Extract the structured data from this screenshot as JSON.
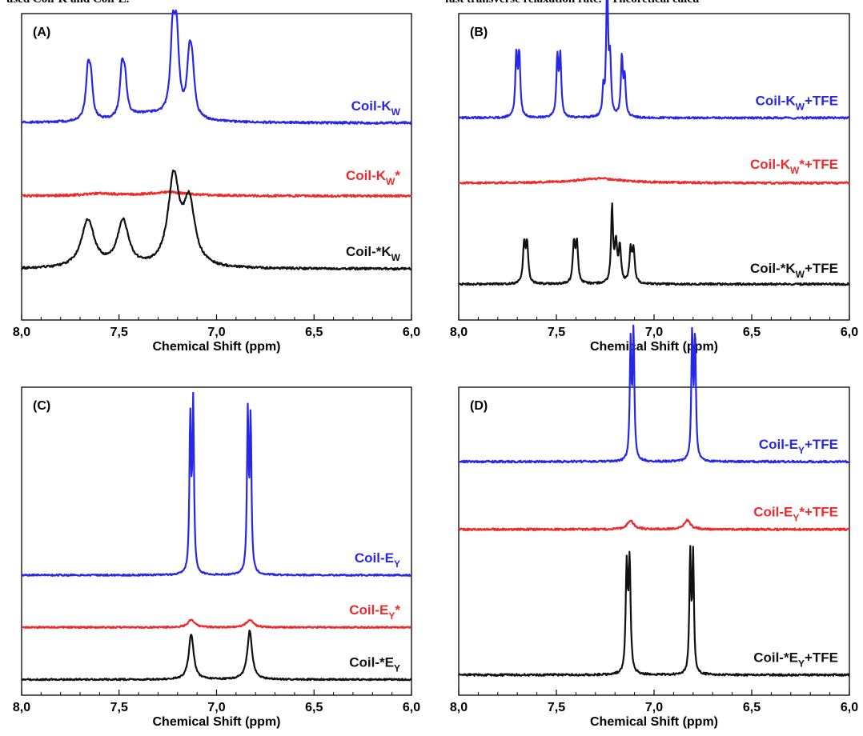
{
  "header_fragments": {
    "left": "used Coil-K and Coil-E.",
    "right": "fast transverse relaxation rate. ² Theoretical calcu"
  },
  "chart_data": [
    {
      "panel": "(A)",
      "type": "line",
      "xlabel": "Chemical Shift (ppm)",
      "xlim": [
        8.0,
        6.0
      ],
      "x_reversed": true,
      "xticks": [
        "8,0",
        "7,5",
        "7,0",
        "6,5",
        "6,0"
      ],
      "series": [
        {
          "name": "Coil-K_W",
          "label_main": "Coil-K",
          "label_sub": "W",
          "label_post": "",
          "color": "#2727e6",
          "baseline": 1.0,
          "peaks": [
            {
              "x": 7.66,
              "h": 0.63,
              "w": 0.012
            },
            {
              "x": 7.645,
              "h": 0.5,
              "w": 0.012
            },
            {
              "x": 7.485,
              "h": 0.63,
              "w": 0.012
            },
            {
              "x": 7.47,
              "h": 0.45,
              "w": 0.012
            },
            {
              "x": 7.225,
              "h": 1.05,
              "w": 0.014
            },
            {
              "x": 7.205,
              "h": 1.05,
              "w": 0.014
            },
            {
              "x": 7.14,
              "h": 0.7,
              "w": 0.014
            },
            {
              "x": 7.125,
              "h": 0.6,
              "w": 0.014
            },
            {
              "x": 7.35,
              "h": 0.12,
              "w": 0.15
            }
          ]
        },
        {
          "name": "Coil-K_W*",
          "label_main": "Coil-K",
          "label_sub": "W",
          "label_post": "*",
          "color": "#ef2a2a",
          "baseline": 0.0,
          "peaks": [
            {
              "x": 7.25,
              "h": 0.05,
              "w": 0.12
            },
            {
              "x": 7.6,
              "h": 0.03,
              "w": 0.1
            }
          ]
        },
        {
          "name": "Coil-*K_W",
          "label_main": "Coil-*K",
          "label_sub": "W",
          "label_post": "",
          "color": "#111111",
          "baseline": -1.0,
          "peaks": [
            {
              "x": 7.66,
              "h": 0.65,
              "w": 0.04
            },
            {
              "x": 7.48,
              "h": 0.63,
              "w": 0.035
            },
            {
              "x": 7.22,
              "h": 1.2,
              "w": 0.035
            },
            {
              "x": 7.14,
              "h": 0.85,
              "w": 0.035
            }
          ]
        }
      ],
      "ylim": [
        -1.7,
        2.5
      ]
    },
    {
      "panel": "(B)",
      "type": "line",
      "xlabel": "Chemical Shift (ppm)",
      "xlim": [
        8.0,
        6.0
      ],
      "x_reversed": true,
      "xticks": [
        "8,0",
        "7,5",
        "7,0",
        "6,5",
        "6,0"
      ],
      "series": [
        {
          "name": "Coil-K_W+TFE",
          "label_main": "Coil-K",
          "label_sub": "W",
          "label_post": "+TFE",
          "color": "#2727e6",
          "baseline": 1.0,
          "peaks": [
            {
              "x": 7.705,
              "h": 0.95,
              "w": 0.006
            },
            {
              "x": 7.69,
              "h": 0.95,
              "w": 0.006
            },
            {
              "x": 7.495,
              "h": 0.9,
              "w": 0.006
            },
            {
              "x": 7.48,
              "h": 0.9,
              "w": 0.006
            },
            {
              "x": 7.24,
              "h": 2.0,
              "w": 0.006
            },
            {
              "x": 7.225,
              "h": 0.8,
              "w": 0.006
            },
            {
              "x": 7.26,
              "h": 0.4,
              "w": 0.005
            },
            {
              "x": 7.165,
              "h": 0.9,
              "w": 0.006
            },
            {
              "x": 7.15,
              "h": 0.6,
              "w": 0.006
            }
          ]
        },
        {
          "name": "Coil-K_W*+TFE",
          "label_main": "Coil-K",
          "label_sub": "W",
          "label_post": "*+TFE",
          "color": "#ef2a2a",
          "baseline": 0.0,
          "peaks": [
            {
              "x": 7.28,
              "h": 0.07,
              "w": 0.15
            }
          ]
        },
        {
          "name": "Coil-*K_W+TFE",
          "label_main": "Coil-*K",
          "label_sub": "W",
          "label_post": "+TFE",
          "color": "#111111",
          "baseline": -1.55,
          "peaks": [
            {
              "x": 7.665,
              "h": 0.6,
              "w": 0.007
            },
            {
              "x": 7.65,
              "h": 0.6,
              "w": 0.007
            },
            {
              "x": 7.41,
              "h": 0.6,
              "w": 0.007
            },
            {
              "x": 7.395,
              "h": 0.6,
              "w": 0.007
            },
            {
              "x": 7.215,
              "h": 1.15,
              "w": 0.006
            },
            {
              "x": 7.195,
              "h": 0.6,
              "w": 0.007
            },
            {
              "x": 7.175,
              "h": 0.55,
              "w": 0.007
            },
            {
              "x": 7.12,
              "h": 0.5,
              "w": 0.007
            },
            {
              "x": 7.105,
              "h": 0.5,
              "w": 0.007
            }
          ]
        }
      ],
      "ylim": [
        -2.1,
        2.6
      ]
    },
    {
      "panel": "(C)",
      "type": "line",
      "xlabel": "Chemical Shift (ppm)",
      "xlim": [
        8.0,
        6.0
      ],
      "x_reversed": true,
      "xticks": [
        "8,0",
        "7,5",
        "7,0",
        "6,5",
        "6,0"
      ],
      "series": [
        {
          "name": "Coil-E_Y",
          "label_main": "Coil-E",
          "label_sub": "Y",
          "label_post": "",
          "color": "#2727e6",
          "baseline": 1.0,
          "peaks": [
            {
              "x": 7.135,
              "h": 2.9,
              "w": 0.005
            },
            {
              "x": 7.12,
              "h": 3.2,
              "w": 0.005
            },
            {
              "x": 6.84,
              "h": 3.0,
              "w": 0.005
            },
            {
              "x": 6.825,
              "h": 2.9,
              "w": 0.005
            }
          ]
        },
        {
          "name": "Coil-E_Y*",
          "label_main": "Coil-E",
          "label_sub": "Y",
          "label_post": "*",
          "color": "#ef2a2a",
          "baseline": 0.0,
          "peaks": [
            {
              "x": 7.13,
              "h": 0.15,
              "w": 0.02
            },
            {
              "x": 6.83,
              "h": 0.15,
              "w": 0.02
            }
          ]
        },
        {
          "name": "Coil-*E_Y",
          "label_main": "Coil-*E",
          "label_sub": "Y",
          "label_post": "",
          "color": "#111111",
          "baseline": -1.0,
          "peaks": [
            {
              "x": 7.13,
              "h": 0.87,
              "w": 0.015
            },
            {
              "x": 6.83,
              "h": 0.93,
              "w": 0.015
            }
          ]
        }
      ],
      "ylim": [
        -1.3,
        4.6
      ]
    },
    {
      "panel": "(D)",
      "type": "line",
      "xlabel": "Chemical Shift (ppm)",
      "xlim": [
        8.0,
        6.0
      ],
      "x_reversed": true,
      "xticks": [
        "8,0",
        "7,5",
        "7,0",
        "6,5",
        "6,0"
      ],
      "series": [
        {
          "name": "Coil-E_Y+TFE",
          "label_main": "Coil-E",
          "label_sub": "Y",
          "label_post": "+TFE",
          "color": "#2727e6",
          "baseline": 1.0,
          "peaks": [
            {
              "x": 7.12,
              "h": 1.7,
              "w": 0.005
            },
            {
              "x": 7.105,
              "h": 1.85,
              "w": 0.005
            },
            {
              "x": 6.805,
              "h": 1.85,
              "w": 0.005
            },
            {
              "x": 6.79,
              "h": 1.8,
              "w": 0.005
            }
          ]
        },
        {
          "name": "Coil-E_Y*+TFE",
          "label_main": "Coil-E",
          "label_sub": "Y",
          "label_post": "*+TFE",
          "color": "#ef2a2a",
          "baseline": 0.0,
          "peaks": [
            {
              "x": 7.12,
              "h": 0.13,
              "w": 0.02
            },
            {
              "x": 6.83,
              "h": 0.13,
              "w": 0.02
            }
          ]
        },
        {
          "name": "Coil-*E_Y+TFE",
          "label_main": "Coil-*E",
          "label_sub": "Y",
          "label_post": "+TFE",
          "color": "#111111",
          "baseline": -2.15,
          "peaks": [
            {
              "x": 7.14,
              "h": 1.55,
              "w": 0.006
            },
            {
              "x": 7.125,
              "h": 1.6,
              "w": 0.006
            },
            {
              "x": 6.815,
              "h": 1.75,
              "w": 0.005
            },
            {
              "x": 6.8,
              "h": 1.73,
              "w": 0.005
            }
          ]
        }
      ],
      "ylim": [
        -2.45,
        2.1
      ]
    }
  ]
}
